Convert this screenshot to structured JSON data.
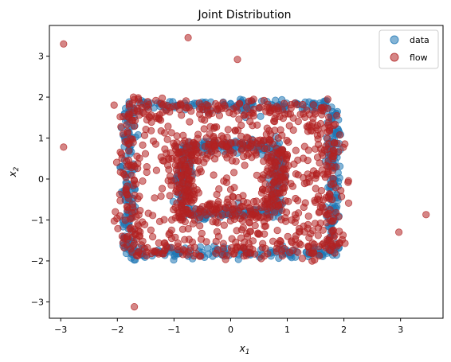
{
  "chart_data": {
    "type": "scatter",
    "title": "Joint Distribution",
    "xlabel": "x",
    "xlabel_sub": "1",
    "ylabel": "x",
    "ylabel_sub": "2",
    "xlim": [
      -3.2,
      3.75
    ],
    "ylim": [
      -3.4,
      3.75
    ],
    "xticks": [
      "−3",
      "−2",
      "−1",
      "0",
      "1",
      "2",
      "3"
    ],
    "xtick_values": [
      -3,
      -2,
      -1,
      0,
      1,
      2,
      3
    ],
    "yticks": [
      "−3",
      "−2",
      "−1",
      "0",
      "1",
      "2",
      "3"
    ],
    "ytick_values": [
      -3,
      -2,
      -1,
      0,
      1,
      2,
      3
    ],
    "grid": false,
    "legend_position": "top-right",
    "series": [
      {
        "name": "data",
        "color": "#1f77b4",
        "alpha": 0.55,
        "description": "samples on two concentric square rings (outer ~1.85 half-width, inner ~0.85 half-width)"
      },
      {
        "name": "flow",
        "color": "#b22222",
        "alpha": 0.55,
        "description": "flow samples filling the same square region, plus outliers"
      }
    ],
    "outliers_flow": [
      [
        -2.95,
        3.3
      ],
      [
        -0.75,
        3.45
      ],
      [
        0.12,
        2.92
      ],
      [
        -2.95,
        0.78
      ],
      [
        -1.7,
        -3.12
      ],
      [
        2.97,
        -1.3
      ],
      [
        3.45,
        -0.87
      ]
    ]
  }
}
